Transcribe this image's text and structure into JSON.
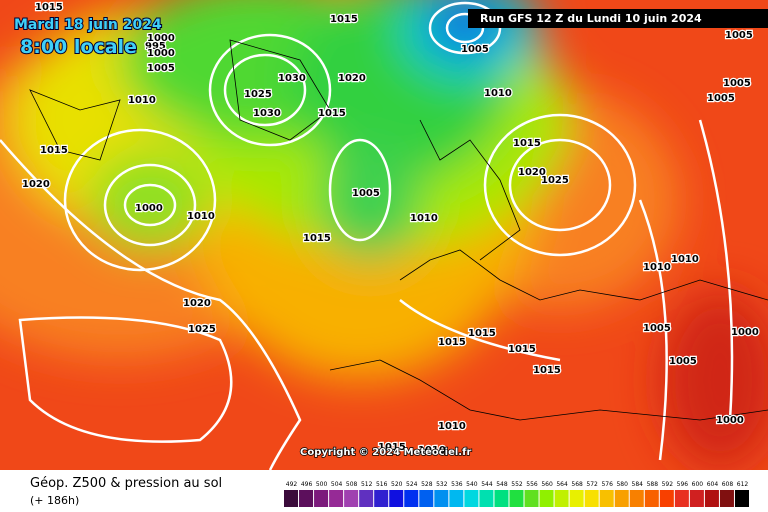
{
  "header": {
    "date": "Mardi 18 juin 2024",
    "time": "8:00 locale",
    "run": "Run GFS 12 Z du Lundi 10 juin 2024"
  },
  "isobar_labels": [
    "1015",
    "995",
    "1000",
    "1000",
    "1005",
    "1010",
    "1015",
    "1020",
    "1000",
    "1010",
    "1020",
    "1025",
    "1030",
    "1025",
    "1030",
    "1020",
    "1015",
    "1015",
    "1005",
    "1015",
    "1010",
    "1005",
    "1010",
    "1015",
    "1020",
    "1025",
    "1005",
    "1005",
    "1005",
    "1010",
    "1010",
    "1005",
    "1000",
    "1005",
    "1015",
    "1015",
    "1015",
    "1015",
    "1000",
    "1010",
    "1015",
    "1010"
  ],
  "copyright": "Copyright © 2024 Meteociel.fr",
  "legend": {
    "title": "Géop. Z500 & pression au sol",
    "lead": "(+ 186h)",
    "scale": [
      492,
      496,
      500,
      504,
      508,
      512,
      516,
      520,
      524,
      528,
      532,
      536,
      540,
      544,
      548,
      552,
      556,
      560,
      564,
      568,
      572,
      576,
      580,
      584,
      588,
      592,
      596,
      600,
      604,
      608,
      612
    ],
    "scale_colors": [
      "#3b0b3b",
      "#5c0f5c",
      "#7c1a7c",
      "#962a96",
      "#a040b0",
      "#6030c0",
      "#3020d0",
      "#1010e0",
      "#0030f0",
      "#0060f0",
      "#0090f0",
      "#00b8f0",
      "#00d8e0",
      "#00e0b0",
      "#00e080",
      "#20e040",
      "#60e020",
      "#90f000",
      "#c0f000",
      "#e8f000",
      "#f8e000",
      "#f8c000",
      "#f8a000",
      "#f88000",
      "#f86000",
      "#f84000",
      "#e83020",
      "#d02020",
      "#b01010",
      "#801010",
      "#000000"
    ]
  }
}
